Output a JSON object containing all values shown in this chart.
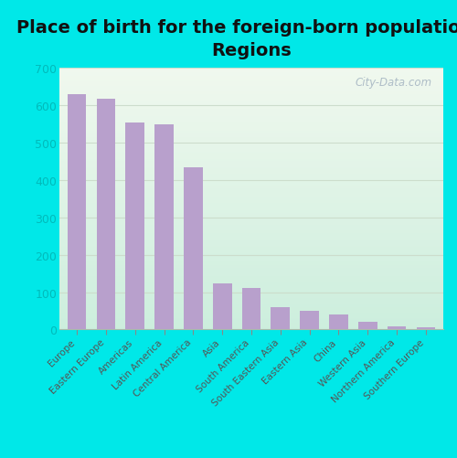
{
  "title": "Place of birth for the foreign-born population -\nRegions",
  "categories": [
    "Europe",
    "Eastern Europe",
    "Americas",
    "Latin America",
    "Central America",
    "Asia",
    "South America",
    "South Eastern Asia",
    "Eastern Asia",
    "China",
    "Western Asia",
    "Northern America",
    "Southern Europe"
  ],
  "values": [
    630,
    618,
    554,
    548,
    435,
    123,
    112,
    60,
    50,
    40,
    20,
    8,
    6
  ],
  "bar_color": "#b8a0cc",
  "background_outer": "#00e8e8",
  "plot_bg_top": "#f0f8ee",
  "plot_bg_bottom": "#cceedd",
  "ylim": [
    0,
    700
  ],
  "yticks": [
    0,
    100,
    200,
    300,
    400,
    500,
    600,
    700
  ],
  "title_fontsize": 14,
  "ytick_fontsize": 9,
  "xtick_fontsize": 7.5,
  "watermark": "City-Data.com"
}
